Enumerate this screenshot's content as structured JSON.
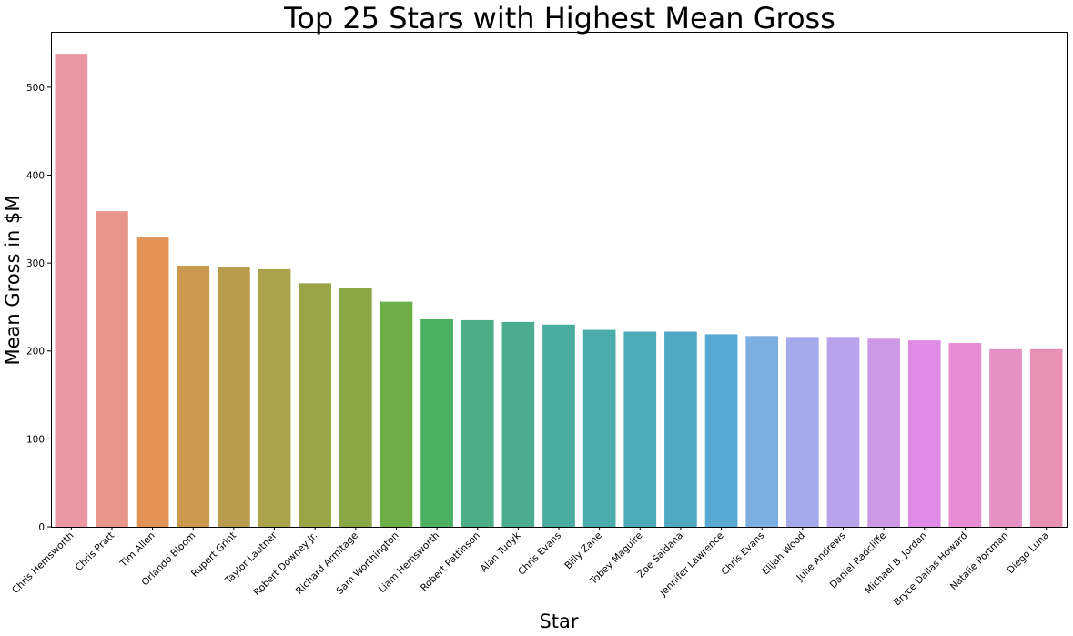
{
  "chart_data": {
    "type": "bar",
    "title": "Top 25 Stars with Highest Mean Gross",
    "xlabel": "Star",
    "ylabel": "Mean Gross in $M",
    "ylim": [
      0,
      563
    ],
    "yticks": [
      0,
      100,
      200,
      300,
      400,
      500
    ],
    "grid": false,
    "categories": [
      "Chris Hemsworth",
      "Chris Pratt",
      "Tim Allen",
      "Orlando Bloom",
      "Rupert Grint",
      "Taylor Lautner",
      "Robert Downey Jr.",
      "Richard Armitage",
      "Sam Worthington",
      "Liam Hemsworth",
      "Robert Pattinson",
      "Alan Tudyk",
      "Chris Evans",
      "Billy Zane",
      "Tobey Maguire",
      "Zoe Saldana",
      "Jennifer Lawrence",
      "Chris Evans",
      "Elijah Wood",
      "Julie Andrews",
      "Daniel Radcliffe",
      "Michael B. Jordan",
      "Bryce Dallas Howard",
      "Natalie Portman",
      "Diego Luna"
    ],
    "values": [
      538,
      359,
      329,
      297,
      296,
      293,
      277,
      272,
      256,
      236,
      235,
      233,
      230,
      224,
      222,
      222,
      219,
      217,
      216,
      216,
      214,
      212,
      209,
      202,
      202
    ],
    "colors": [
      "#ea96a3",
      "#e8968a",
      "#e29255",
      "#cc9a4f",
      "#b99c4b",
      "#aca24a",
      "#9aa645",
      "#89a843",
      "#6daf47",
      "#4cb062",
      "#4bae85",
      "#4bac90",
      "#4aab9f",
      "#4aacab",
      "#4cabb6",
      "#4fa9c3",
      "#57a8d2",
      "#7daee1",
      "#a3a9ea",
      "#b9a3eb",
      "#cd99e5",
      "#df8be5",
      "#e68bd4",
      "#e790c5",
      "#e790b3"
    ]
  }
}
